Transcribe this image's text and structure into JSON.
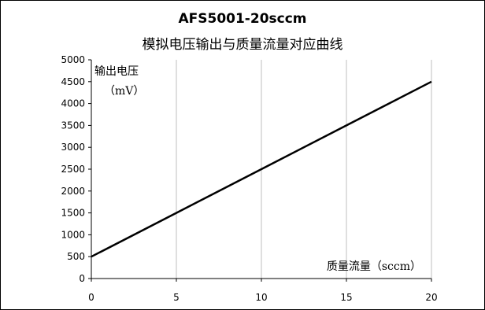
{
  "chart_data": {
    "type": "line",
    "title": "AFS5001-20sccm",
    "subtitle": "模拟电压输出与质量流量对应曲线",
    "xlabel": "质量流量（sccm）",
    "ylabel_line1": "输出电压",
    "ylabel_line2": "（mV）",
    "xlim": [
      0,
      20
    ],
    "ylim": [
      0,
      5000
    ],
    "x_ticks": [
      0,
      5,
      10,
      15,
      20
    ],
    "y_ticks": [
      0,
      500,
      1000,
      1500,
      2000,
      2500,
      3000,
      3500,
      4000,
      4500,
      5000
    ],
    "grid": "vertical",
    "legend": "none",
    "series": [
      {
        "x": [
          0,
          5,
          10,
          15,
          20
        ],
        "y": [
          500,
          1500,
          2500,
          3500,
          4500
        ]
      }
    ],
    "colors": {
      "line": "#000000",
      "grid": "#bfbfbf",
      "axis": "#000000"
    }
  }
}
